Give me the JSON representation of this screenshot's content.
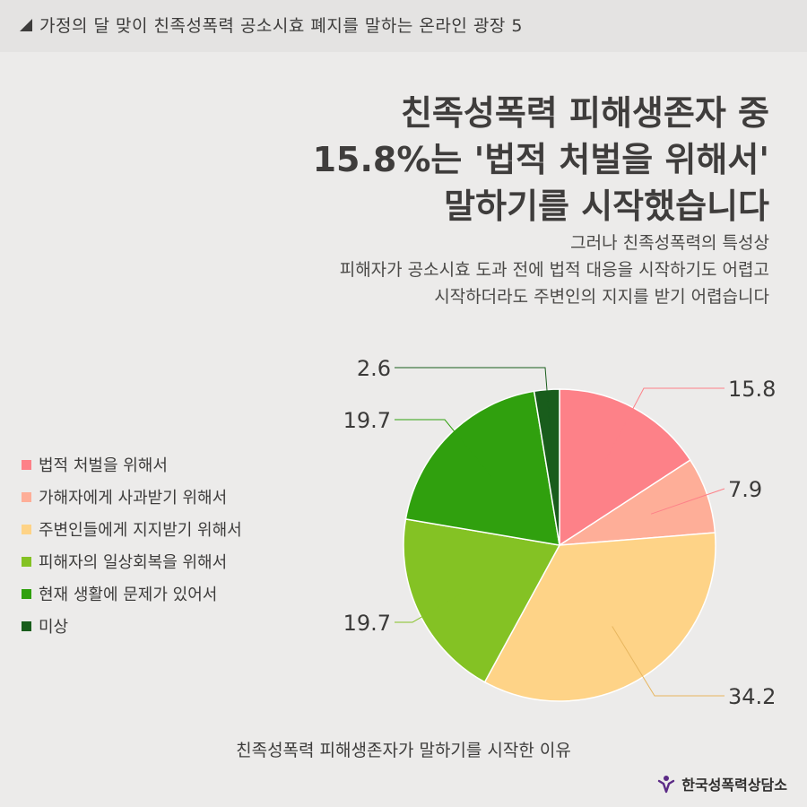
{
  "header": {
    "series_title": "가정의 달 맞이 친족성폭력 공소시효 폐지를 말하는 온라인 광장 5"
  },
  "headline": {
    "lines": [
      "친족성폭력 피해생존자 중",
      "15.8%는 '법적 처벌을 위해서'",
      "말하기를 시작했습니다"
    ]
  },
  "subtext": {
    "lines": [
      "그러나 친족성폭력의 특성상",
      "피해자가 공소시효 도과 전에 법적 대응을 시작하기도 어렵고",
      "시작하더라도 주변인의 지지를 받기 어렵습니다"
    ]
  },
  "chart_data": {
    "type": "pie",
    "title": "친족성폭력 피해생존자가 말하기를 시작한 이유",
    "categories": [
      "법적 처벌을 위해서",
      "가해자에게 사과받기 위해서",
      "주변인들에게 지지받기 위해서",
      "피해자의 일상회복을 위해서",
      "현재 생활에 문제가 있어서",
      "미상"
    ],
    "values": [
      15.8,
      7.9,
      34.2,
      19.7,
      19.7,
      2.6
    ],
    "value_labels": [
      "15.8",
      "7.9",
      "34.2",
      "19.7",
      "19.7",
      "2.6"
    ],
    "colors": [
      "#fd8188",
      "#feae98",
      "#fed387",
      "#84c224",
      "#30a00e",
      "#195d1c"
    ],
    "legend_position": "left"
  },
  "footer": {
    "organization": "한국성폭력상담소",
    "logo_icon": "org-logo-icon"
  },
  "theme": {
    "background": "#ecebea",
    "leader_line": "#fd8188"
  }
}
